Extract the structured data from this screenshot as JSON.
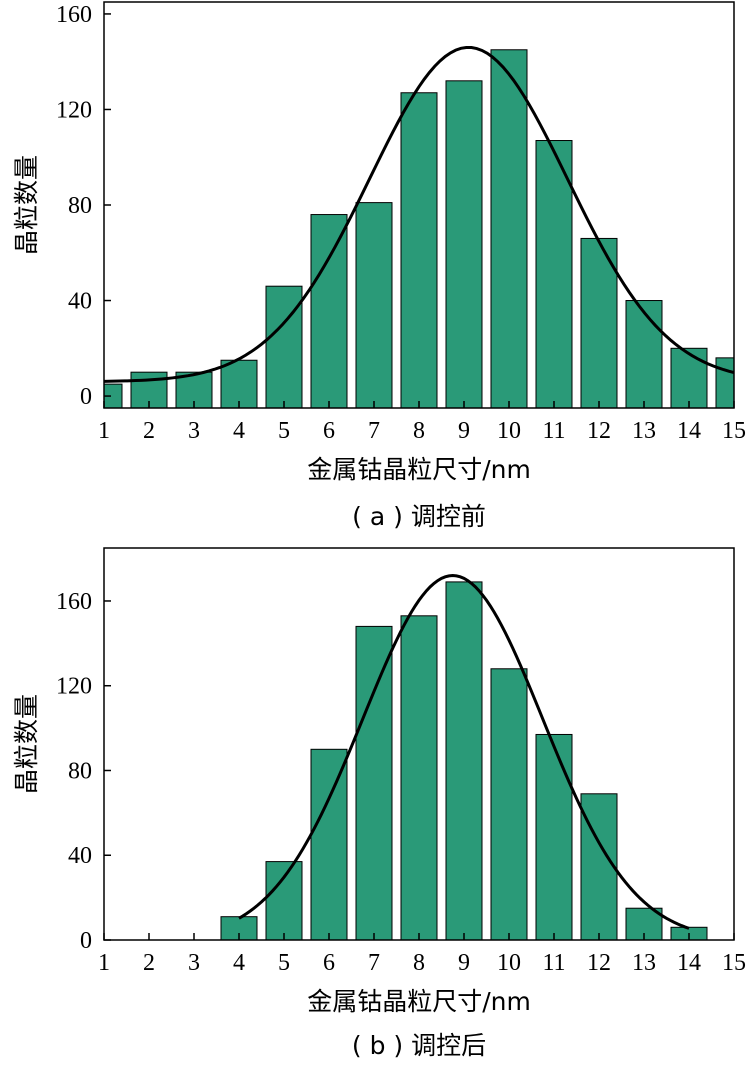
{
  "chart_data": [
    {
      "type": "bar",
      "caption": "( a ) 调控前",
      "xlabel": "金属钴晶粒尺寸/nm",
      "ylabel": "晶粒数量",
      "xlim": [
        1,
        15
      ],
      "ylim": [
        -5,
        165
      ],
      "xticks": [
        "1",
        "2",
        "3",
        "4",
        "5",
        "6",
        "7",
        "8",
        "9",
        "10",
        "11",
        "12",
        "13",
        "14",
        "15"
      ],
      "yticks": [
        "0",
        "40",
        "80",
        "120",
        "160"
      ],
      "x": [
        1,
        2,
        3,
        4,
        5,
        6,
        7,
        8,
        9,
        10,
        11,
        12,
        13,
        14,
        15
      ],
      "values": [
        5,
        10,
        10,
        15,
        46,
        76,
        81,
        127,
        132,
        145,
        107,
        66,
        40,
        20,
        16
      ],
      "fit_curve": {
        "type": "gaussian",
        "amplitude": 140,
        "center": 9.1,
        "sigma": 2.2,
        "baseline": 6,
        "x_range": [
          1,
          15
        ]
      }
    },
    {
      "type": "bar",
      "caption": "( b ) 调控后",
      "xlabel": "金属钴晶粒尺寸/nm",
      "ylabel": "晶粒数量",
      "xlim": [
        1,
        15
      ],
      "ylim": [
        0,
        185
      ],
      "xticks": [
        "1",
        "2",
        "3",
        "4",
        "5",
        "6",
        "7",
        "8",
        "9",
        "10",
        "11",
        "12",
        "13",
        "14",
        "15"
      ],
      "yticks": [
        "0",
        "40",
        "80",
        "120",
        "160"
      ],
      "x": [
        1,
        2,
        3,
        4,
        5,
        6,
        7,
        8,
        9,
        10,
        11,
        12,
        13,
        14,
        15
      ],
      "values": [
        0,
        0,
        0,
        11,
        37,
        90,
        148,
        153,
        169,
        128,
        97,
        69,
        15,
        6,
        0
      ],
      "fit_curve": {
        "type": "gaussian",
        "amplitude": 172,
        "center": 8.75,
        "sigma": 2.0,
        "baseline": 0,
        "x_range": [
          4,
          14
        ]
      }
    }
  ]
}
